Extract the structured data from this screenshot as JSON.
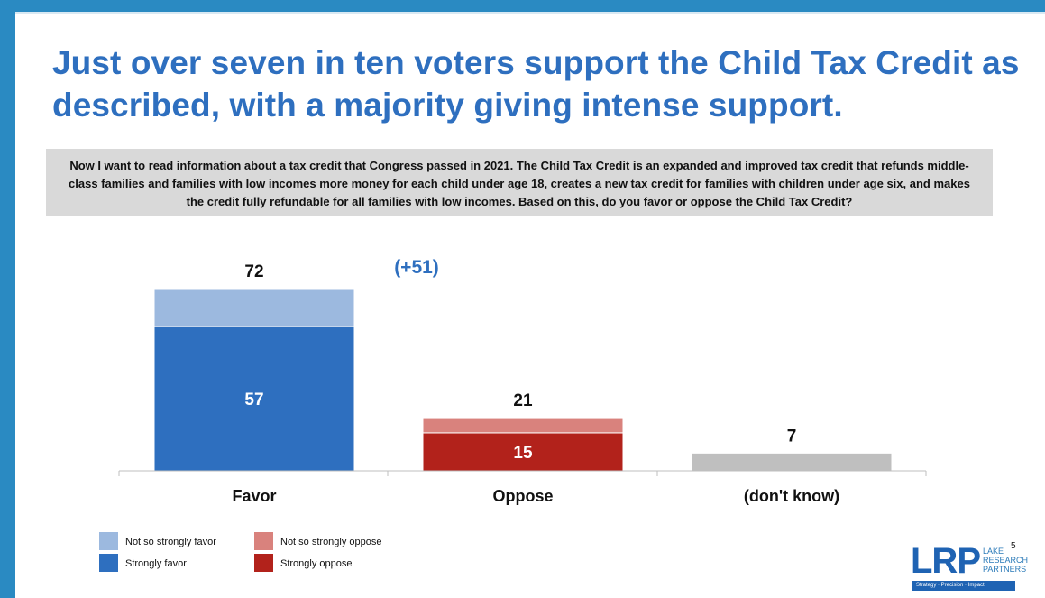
{
  "slide": {
    "title": "Just over seven in ten voters support the Child Tax Credit as described, with a majority giving intense support.",
    "question": "Now I want to read information about a tax credit that Congress passed in 2021. The Child Tax Credit is an expanded and improved tax credit that refunds middle-class families and families with low incomes more money for each child under age 18, creates a new tax credit for families with children under age six, and makes the credit fully refundable for all families with low incomes. Based on this, do you favor or oppose the Child Tax Credit?",
    "page_number": "5",
    "net_annotation": "(+51)"
  },
  "logo": {
    "mark": "LRP",
    "words": [
      "LAKE",
      "RESEARCH",
      "PARTNERS"
    ],
    "tagline": "Strategy · Precision · Impact"
  },
  "colors": {
    "frame": "#2a8ac2",
    "title": "#2e6fbf",
    "strongly_favor": "#2e6fbf",
    "not_so_strongly_favor": "#9cb9df",
    "strongly_oppose": "#b2221b",
    "not_so_strongly_oppose": "#d9827d",
    "dont_know": "#bfbfbf"
  },
  "chart_data": {
    "type": "bar",
    "stacked": true,
    "categories": [
      "Favor",
      "Oppose",
      "(don't know)"
    ],
    "series": [
      {
        "name": "Strongly favor",
        "values": [
          57,
          null,
          null
        ],
        "color": "#2e6fbf"
      },
      {
        "name": "Not so strongly favor",
        "values": [
          15,
          null,
          null
        ],
        "color": "#9cb9df"
      },
      {
        "name": "Strongly oppose",
        "values": [
          null,
          15,
          null
        ],
        "color": "#b2221b"
      },
      {
        "name": "Not so strongly oppose",
        "values": [
          null,
          6,
          null
        ],
        "color": "#d9827d"
      },
      {
        "name": "",
        "values": [
          null,
          null,
          7
        ],
        "color": "#bfbfbf"
      }
    ],
    "totals": [
      72,
      21,
      7
    ],
    "inner_labels": [
      "57",
      "15",
      null
    ],
    "ylim": [
      0,
      80
    ],
    "grid": false,
    "legend": [
      {
        "label": "Not so strongly favor",
        "color": "#9cb9df"
      },
      {
        "label": "Strongly favor",
        "color": "#2e6fbf"
      },
      {
        "label": "Not so strongly oppose",
        "color": "#d9827d"
      },
      {
        "label": "Strongly oppose",
        "color": "#b2221b"
      }
    ],
    "legend_placement": "bottom-left"
  }
}
